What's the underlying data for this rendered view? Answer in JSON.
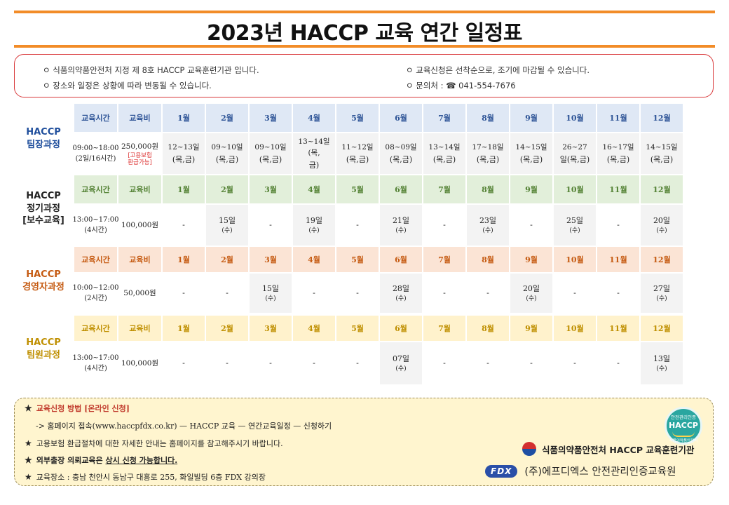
{
  "title": "2023년 HACCP 교육 연간 일정표",
  "notices": [
    "ㅇ 식품의약품안전처 지정 제 8호 HACCP 교육훈련기관 입니다.",
    "ㅇ 장소와 일정은 상황에 따라 변동될 수 있습니다.",
    "ㅇ 교육신청은 선착순으로, 조기에 마감될 수 있습니다.",
    "ㅇ 문의처 : ☎ 041-554-7676"
  ],
  "header": {
    "time": "교육시간",
    "fee": "교육비",
    "months": [
      "1월",
      "2월",
      "3월",
      "4월",
      "5월",
      "6월",
      "7월",
      "8월",
      "9월",
      "10월",
      "11월",
      "12월"
    ]
  },
  "courses": [
    {
      "name_line1": "HACCP",
      "name_line2": "팀장과정",
      "name_line3": "",
      "color": "#1f4e9c",
      "header_bg": "#dfe8f5",
      "header_color": "#2f5597",
      "time_main": "09:00~18:00",
      "time_sub": "(2일/16시간)",
      "fee_main": "250,000원",
      "fee_note1": "[고용보험",
      "fee_note2": "환급가능]",
      "schedule": [
        [
          "12~13일",
          "(목,금)"
        ],
        [
          "09~10일",
          "(목,금)"
        ],
        [
          "09~10일",
          "(목,금)"
        ],
        [
          "13~14일(목,",
          "금)"
        ],
        [
          "11~12일",
          "(목,금)"
        ],
        [
          "08~09일",
          "(목,금)"
        ],
        [
          "13~14일",
          "(목,금)"
        ],
        [
          "17~18일",
          "(목,금)"
        ],
        [
          "14~15일",
          "(목,금)"
        ],
        [
          "26~27",
          "일(목,금)"
        ],
        [
          "16~17일",
          "(목,금)"
        ],
        [
          "14~15일",
          "(목,금)"
        ]
      ]
    },
    {
      "name_line1": "HACCP",
      "name_line2": "정기과정",
      "name_line3": "[보수교육]",
      "color": "#222222",
      "header_bg": "#e2efda",
      "header_color": "#548235",
      "time_main": "13:00~17:00",
      "time_sub": "(4시간)",
      "fee_main": "100,000원",
      "fee_note1": "",
      "fee_note2": "",
      "schedule": [
        [
          "-",
          ""
        ],
        [
          "15일",
          "(수)"
        ],
        [
          "-",
          ""
        ],
        [
          "19일",
          "(수)"
        ],
        [
          "-",
          ""
        ],
        [
          "21일",
          "(수)"
        ],
        [
          "-",
          ""
        ],
        [
          "23일",
          "(수)"
        ],
        [
          "-",
          ""
        ],
        [
          "25일",
          "(수)"
        ],
        [
          "-",
          ""
        ],
        [
          "20일",
          "(수)"
        ]
      ]
    },
    {
      "name_line1": "HACCP",
      "name_line2": "경영자과정",
      "name_line3": "",
      "color": "#c55a11",
      "header_bg": "#fbe4d5",
      "header_color": "#c55a11",
      "time_main": "10:00~12:00",
      "time_sub": "(2시간)",
      "fee_main": "50,000원",
      "fee_note1": "",
      "fee_note2": "",
      "schedule": [
        [
          "-",
          ""
        ],
        [
          "-",
          ""
        ],
        [
          "15일",
          "(수)"
        ],
        [
          "-",
          ""
        ],
        [
          "-",
          ""
        ],
        [
          "28일",
          "(수)"
        ],
        [
          "-",
          ""
        ],
        [
          "-",
          ""
        ],
        [
          "20일",
          "(수)"
        ],
        [
          "-",
          ""
        ],
        [
          "-",
          ""
        ],
        [
          "27일",
          "(수)"
        ]
      ]
    },
    {
      "name_line1": "HACCP",
      "name_line2": "팀원과정",
      "name_line3": "",
      "color": "#bf8f00",
      "header_bg": "#fff2cc",
      "header_color": "#bf8f00",
      "time_main": "13:00~17:00",
      "time_sub": "(4시간)",
      "fee_main": "100,000원",
      "fee_note1": "",
      "fee_note2": "",
      "schedule": [
        [
          "-",
          ""
        ],
        [
          "-",
          ""
        ],
        [
          "-",
          ""
        ],
        [
          "-",
          ""
        ],
        [
          "-",
          ""
        ],
        [
          "07일",
          "(수)"
        ],
        [
          "-",
          ""
        ],
        [
          "-",
          ""
        ],
        [
          "-",
          ""
        ],
        [
          "-",
          ""
        ],
        [
          "-",
          ""
        ],
        [
          "13일",
          "(수)"
        ]
      ]
    }
  ],
  "footer": {
    "star": "★",
    "apply_title": "교육신청 방법 [온라인 신청]",
    "apply_path": "-> 홈페이지 접속(www.haccpfdx.co.kr) — HACCP 교육 — 연간교육일정 — 신청하기",
    "refund": "고용보험 환급절차에 대한 자세한 안내는 홈페이지를 참고해주시기 바랍니다.",
    "onsite_a": "외부출장 의뢰교육은 ",
    "onsite_b": "상시 신청 가능합니다.",
    "place": "교육장소 : 충남 천안시 동남구 대흥로 255, 화일빌딩 6층 FDX 강의장"
  },
  "badge": {
    "top": "안전관리인증",
    "main": "HACCP",
    "bottom": "식품의약품안전처"
  },
  "agency": "식품의약품안전처 HACCP 교육훈련기관",
  "company_logo": "FDX",
  "company": "(주)에프디엑스 안전관리인증교육원"
}
